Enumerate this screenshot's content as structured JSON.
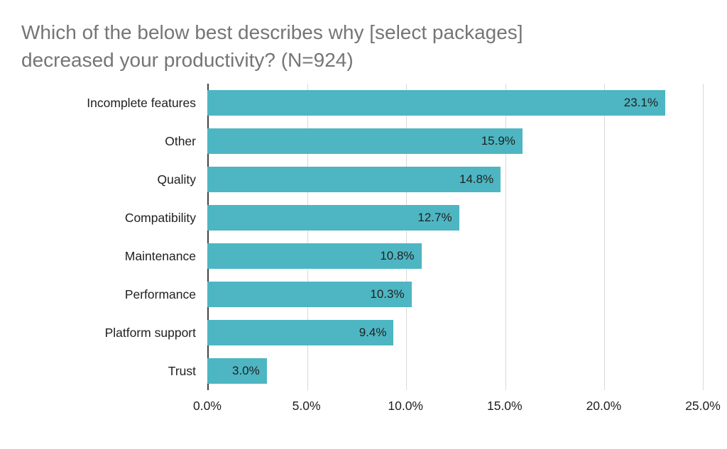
{
  "title": {
    "line1": "Which of the below best describes why [select packages]",
    "line2": "decreased your productivity? (N=924)"
  },
  "chart_data": {
    "type": "bar",
    "orientation": "horizontal",
    "title": "Which of the below best describes why [select packages] decreased your productivity? (N=924)",
    "sample_size_note": "N=924",
    "categories": [
      "Incomplete features",
      "Other",
      "Quality",
      "Compatibility",
      "Maintenance",
      "Performance",
      "Platform support",
      "Trust"
    ],
    "values": [
      23.1,
      15.9,
      14.8,
      12.7,
      10.8,
      10.3,
      9.4,
      3.0
    ],
    "value_labels": [
      "23.1%",
      "15.9%",
      "14.8%",
      "12.7%",
      "10.8%",
      "10.3%",
      "9.4%",
      "3.0%"
    ],
    "xlabel": "",
    "ylabel": "",
    "xlim": [
      0,
      25
    ],
    "x_ticks": [
      0,
      5,
      10,
      15,
      20,
      25
    ],
    "x_tick_labels": [
      "0.0%",
      "5.0%",
      "10.0%",
      "15.0%",
      "20.0%",
      "25.0%"
    ],
    "grid": "vertical",
    "legend": "none"
  },
  "colors": {
    "bar": "#4db6c2",
    "title_text": "#757575",
    "gridline": "#d9d9d9",
    "axis_line": "#424242",
    "label_text": "#212121",
    "background": "#ffffff"
  }
}
